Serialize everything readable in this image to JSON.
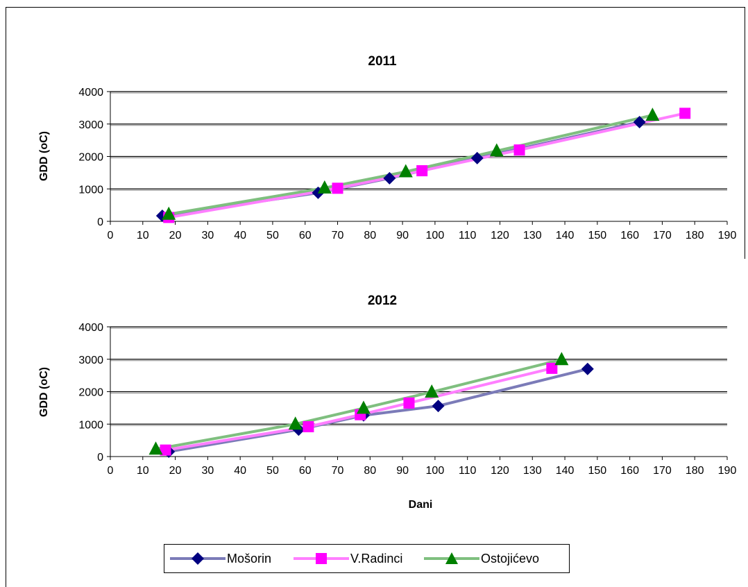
{
  "colors": {
    "Mošorin": "#7b7bb8",
    "V.Radinci": "#ff7fff",
    "Ostojićevo": "#7fbf7f",
    "marker_Mošorin": "#000080",
    "marker_V.Radinci": "#ff00ff",
    "marker_Ostojićevo": "#008000"
  },
  "legend": [
    "Mošorin",
    "V.Radinci",
    "Ostojićevo"
  ],
  "chart_data": [
    {
      "type": "line",
      "title": "2011",
      "xlabel": "",
      "ylabel": "GDD (oC)",
      "xlim": [
        0,
        190
      ],
      "ylim": [
        0,
        4000
      ],
      "x_ticks": [
        "0",
        "10",
        "20",
        "30",
        "40",
        "50",
        "60",
        "70",
        "80",
        "90",
        "100",
        "110",
        "120",
        "130",
        "140",
        "150",
        "160",
        "170",
        "180",
        "190"
      ],
      "y_ticks": [
        "0",
        "1000",
        "2000",
        "3000",
        "4000"
      ],
      "grid": "horizontal",
      "series": [
        {
          "name": "Mošorin",
          "marker": "diamond",
          "x": [
            16,
            64,
            86,
            113,
            163
          ],
          "y": [
            170,
            880,
            1330,
            1950,
            3060
          ]
        },
        {
          "name": "V.Radinci",
          "marker": "square",
          "x": [
            18,
            70,
            96,
            126,
            177
          ],
          "y": [
            120,
            1020,
            1560,
            2200,
            3330
          ]
        },
        {
          "name": "Ostojićevo",
          "marker": "triangle",
          "x": [
            18,
            66,
            91,
            119,
            167
          ],
          "y": [
            220,
            1030,
            1530,
            2170,
            3270
          ]
        }
      ]
    },
    {
      "type": "line",
      "title": "2012",
      "xlabel": "Dani",
      "ylabel": "GDD (oC)",
      "xlim": [
        0,
        190
      ],
      "ylim": [
        0,
        4000
      ],
      "x_ticks": [
        "0",
        "10",
        "20",
        "30",
        "40",
        "50",
        "60",
        "70",
        "80",
        "90",
        "100",
        "110",
        "120",
        "130",
        "140",
        "150",
        "160",
        "170",
        "180",
        "190"
      ],
      "y_ticks": [
        "0",
        "1000",
        "2000",
        "3000",
        "4000"
      ],
      "grid": "horizontal",
      "series": [
        {
          "name": "Mošorin",
          "marker": "diamond",
          "x": [
            18,
            58,
            78,
            101,
            147
          ],
          "y": [
            150,
            830,
            1270,
            1560,
            2700
          ]
        },
        {
          "name": "V.Radinci",
          "marker": "square",
          "x": [
            17,
            61,
            77,
            92,
            136
          ],
          "y": [
            200,
            920,
            1290,
            1650,
            2720
          ]
        },
        {
          "name": "Ostojićevo",
          "marker": "triangle",
          "x": [
            14,
            57,
            78,
            99,
            139
          ],
          "y": [
            230,
            1000,
            1490,
            1990,
            2990
          ]
        }
      ]
    }
  ]
}
